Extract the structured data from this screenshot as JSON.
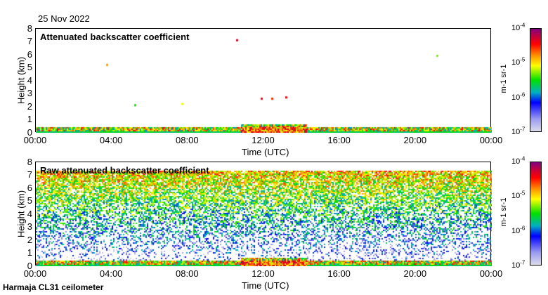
{
  "date": "25 Nov 2022",
  "footer": "Harmaja CL31 ceilometer",
  "chart_data": [
    {
      "type": "heatmap",
      "title": "Attenuated backscatter coefficient",
      "xlabel": "Time (UTC)",
      "ylabel": "Height (km)",
      "xticks": [
        "00:00",
        "04:00",
        "08:00",
        "12:00",
        "16:00",
        "20:00",
        "00:00"
      ],
      "yticks": [
        "0",
        "1",
        "2",
        "3",
        "4",
        "5",
        "6",
        "7",
        "8"
      ],
      "ylim": [
        0,
        8
      ],
      "colorbar": {
        "label": "m-1 sr-1",
        "ticks": [
          "10-7",
          "10-6",
          "10-5",
          "10-4"
        ],
        "scale": "log"
      }
    },
    {
      "type": "heatmap",
      "title": "Raw attenuated backscatter coefficient",
      "xlabel": "Time (UTC)",
      "ylabel": "Height (km)",
      "xticks": [
        "00:00",
        "04:00",
        "08:00",
        "12:00",
        "16:00",
        "20:00",
        "00:00"
      ],
      "yticks": [
        "0",
        "1",
        "2",
        "3",
        "4",
        "5",
        "6",
        "7",
        "8"
      ],
      "ylim": [
        0,
        8
      ],
      "colorbar": {
        "label": "m-1 sr-1",
        "ticks": [
          "10-7",
          "10-6",
          "10-5",
          "10-4"
        ],
        "scale": "log"
      }
    }
  ]
}
